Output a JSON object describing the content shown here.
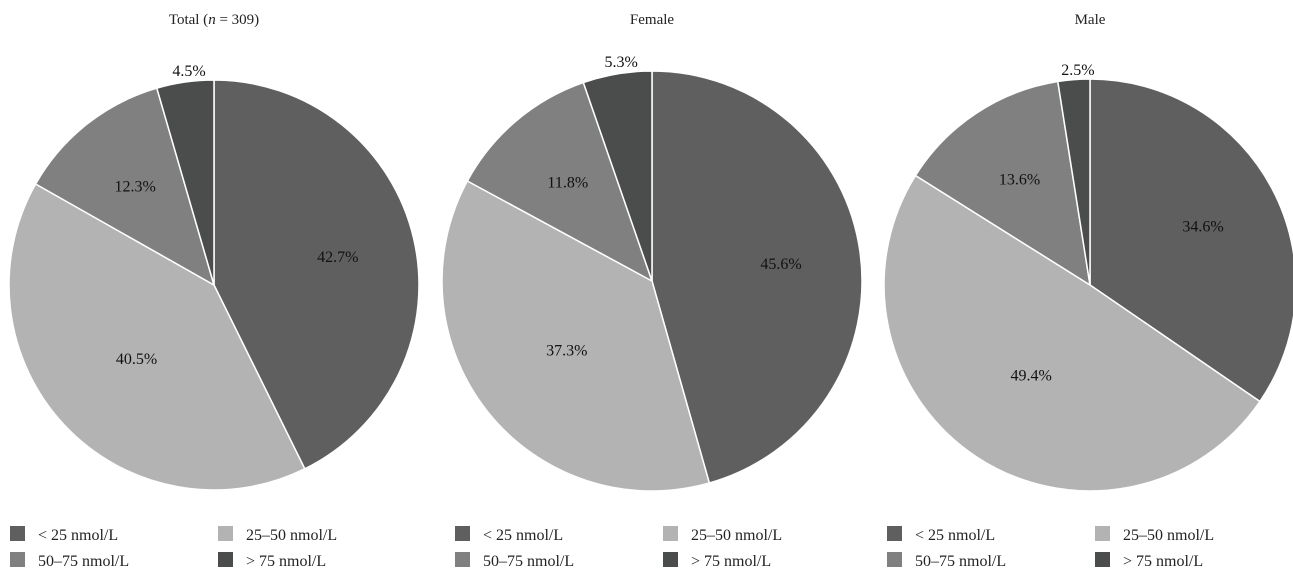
{
  "chart_data": [
    {
      "type": "pie",
      "title": "Total (n = 309)",
      "title_parts": [
        "Total (",
        "n",
        " = 309)"
      ],
      "slices": [
        {
          "label": "< 25 nmol/L",
          "value": 42.7,
          "value_label": "42.7%"
        },
        {
          "label": "25–50 nmol/L",
          "value": 40.5,
          "value_label": "40.5%"
        },
        {
          "label": "50–75 nmol/L",
          "value": 12.3,
          "value_label": "12.3%"
        },
        {
          "label": "> 75 nmol/L",
          "value": 4.5,
          "value_label": "4.5%"
        }
      ],
      "legend": [
        "< 25 nmol/L",
        "25–50 nmol/L",
        "50–75 nmol/L",
        "> 75 nmol/L"
      ]
    },
    {
      "type": "pie",
      "title": "Female",
      "slices": [
        {
          "label": "< 25 nmol/L",
          "value": 45.6,
          "value_label": "45.6%"
        },
        {
          "label": "25–50 nmol/L",
          "value": 37.3,
          "value_label": "37.3%"
        },
        {
          "label": "50–75 nmol/L",
          "value": 11.8,
          "value_label": "11.8%"
        },
        {
          "label": "> 75 nmol/L",
          "value": 5.3,
          "value_label": "5.3%"
        }
      ],
      "legend": [
        "< 25 nmol/L",
        "25–50 nmol/L",
        "50–75 nmol/L",
        "> 75 nmol/L"
      ]
    },
    {
      "type": "pie",
      "title": "Male",
      "slices": [
        {
          "label": "< 25 nmol/L",
          "value": 34.6,
          "value_label": "34.6%"
        },
        {
          "label": "25–50 nmol/L",
          "value": 49.4,
          "value_label": "49.4%"
        },
        {
          "label": "50–75 nmol/L",
          "value": 13.6,
          "value_label": "13.6%"
        },
        {
          "label": "> 75 nmol/L",
          "value": 2.5,
          "value_label": "2.5%"
        }
      ],
      "legend": [
        "< 25 nmol/L",
        "25–50 nmol/L",
        "50–75 nmol/L",
        "> 75 nmol/L"
      ]
    }
  ],
  "colors": {
    "lt25": "#5f5f5f",
    "r25_50": "#b3b3b3",
    "r50_75": "#7f807f",
    "gt75": "#4b4d4c",
    "edge": "#ffffff"
  }
}
